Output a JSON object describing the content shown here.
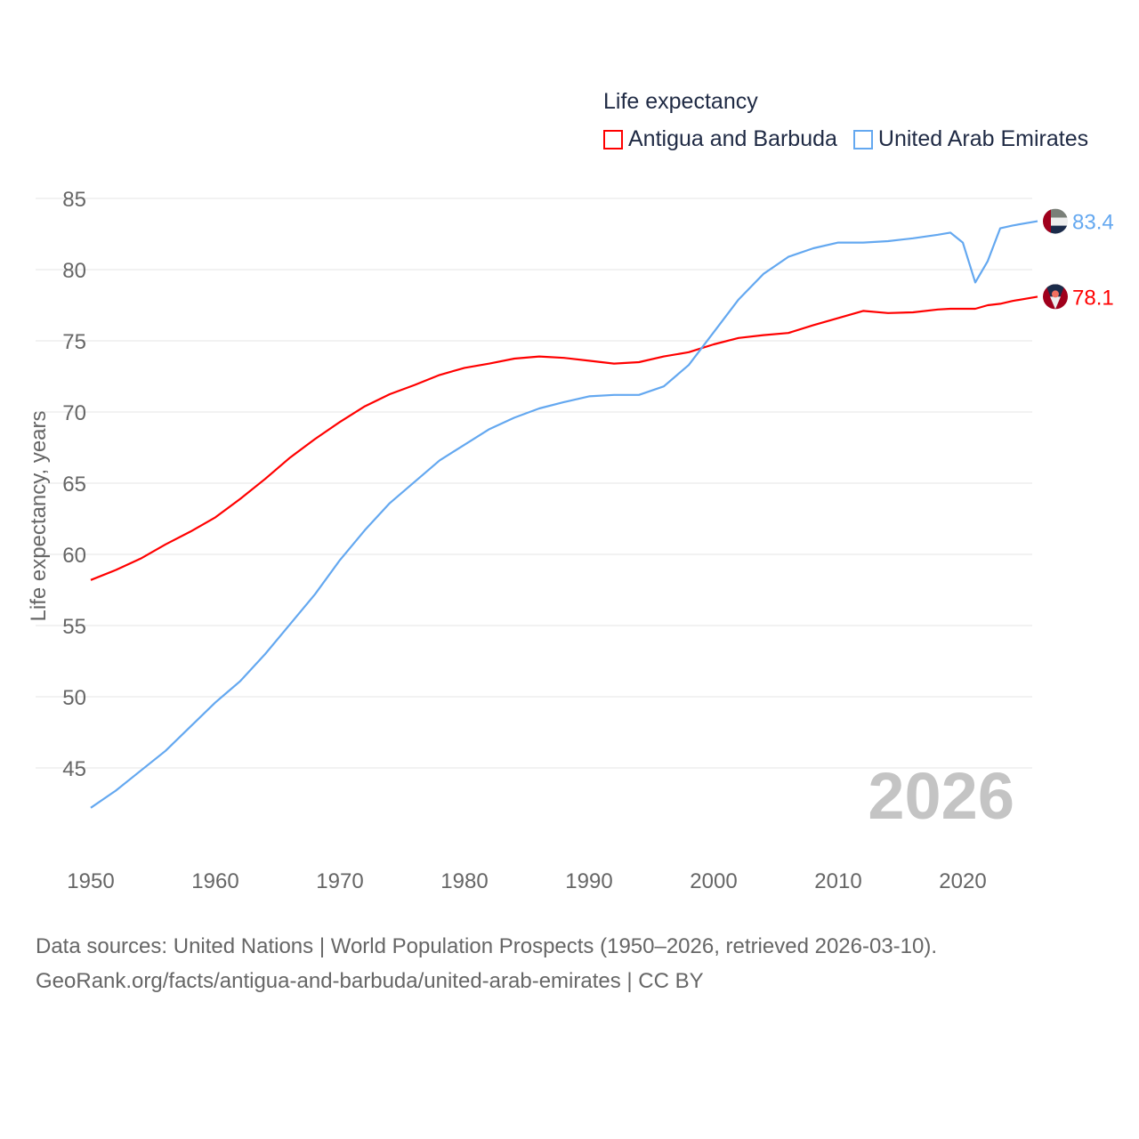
{
  "chart_data": {
    "type": "line",
    "title": "Life expectancy",
    "ylabel": "Life expectancy, years",
    "xlabel": "",
    "xlim": [
      1950,
      2026
    ],
    "ylim": [
      41,
      85.5
    ],
    "grid": true,
    "legend_position": "top-right",
    "x_ticks": [
      1950,
      1960,
      1970,
      1980,
      1990,
      2000,
      2010,
      2020
    ],
    "y_ticks": [
      45,
      50,
      55,
      60,
      65,
      70,
      75,
      80,
      85
    ],
    "year_label": "2026",
    "x": [
      1950,
      1952,
      1954,
      1956,
      1958,
      1960,
      1962,
      1964,
      1966,
      1968,
      1970,
      1972,
      1974,
      1976,
      1978,
      1980,
      1982,
      1984,
      1986,
      1988,
      1990,
      1992,
      1994,
      1996,
      1998,
      2000,
      2002,
      2004,
      2006,
      2008,
      2010,
      2012,
      2014,
      2016,
      2018,
      2019,
      2020,
      2021,
      2022,
      2023,
      2024,
      2026
    ],
    "series": [
      {
        "name": "Antigua and Barbuda",
        "color": "#ff0000",
        "end_label": "78.1",
        "flag": "antigua-flag",
        "values": [
          58.2,
          58.9,
          59.7,
          60.7,
          61.6,
          62.6,
          63.9,
          65.3,
          66.8,
          68.1,
          69.3,
          70.4,
          71.25,
          71.9,
          72.6,
          73.1,
          73.4,
          73.75,
          73.9,
          73.8,
          73.6,
          73.4,
          73.5,
          73.9,
          74.2,
          74.75,
          75.2,
          75.4,
          75.55,
          76.1,
          76.6,
          77.1,
          76.95,
          77.0,
          77.2,
          77.25,
          77.25,
          77.25,
          77.5,
          77.6,
          77.8,
          78.1
        ]
      },
      {
        "name": "United Arab Emirates",
        "color": "#64a8f0",
        "end_label": "83.4",
        "flag": "uae-flag",
        "values": [
          42.2,
          43.4,
          44.8,
          46.2,
          47.9,
          49.6,
          51.1,
          53.0,
          55.1,
          57.2,
          59.6,
          61.7,
          63.6,
          65.1,
          66.6,
          67.7,
          68.8,
          69.6,
          70.25,
          70.7,
          71.1,
          71.2,
          71.2,
          71.8,
          73.3,
          75.6,
          77.9,
          79.7,
          80.9,
          81.5,
          81.9,
          81.9,
          82.0,
          82.2,
          82.45,
          82.6,
          81.9,
          79.1,
          80.6,
          82.9,
          83.1,
          83.4
        ]
      }
    ]
  },
  "footer": {
    "line1": "Data sources: United Nations | World Population Prospects (1950–2026, retrieved 2026-03-10).",
    "line2": "GeoRank.org/facts/antigua-and-barbuda/united-arab-emirates | CC BY"
  }
}
